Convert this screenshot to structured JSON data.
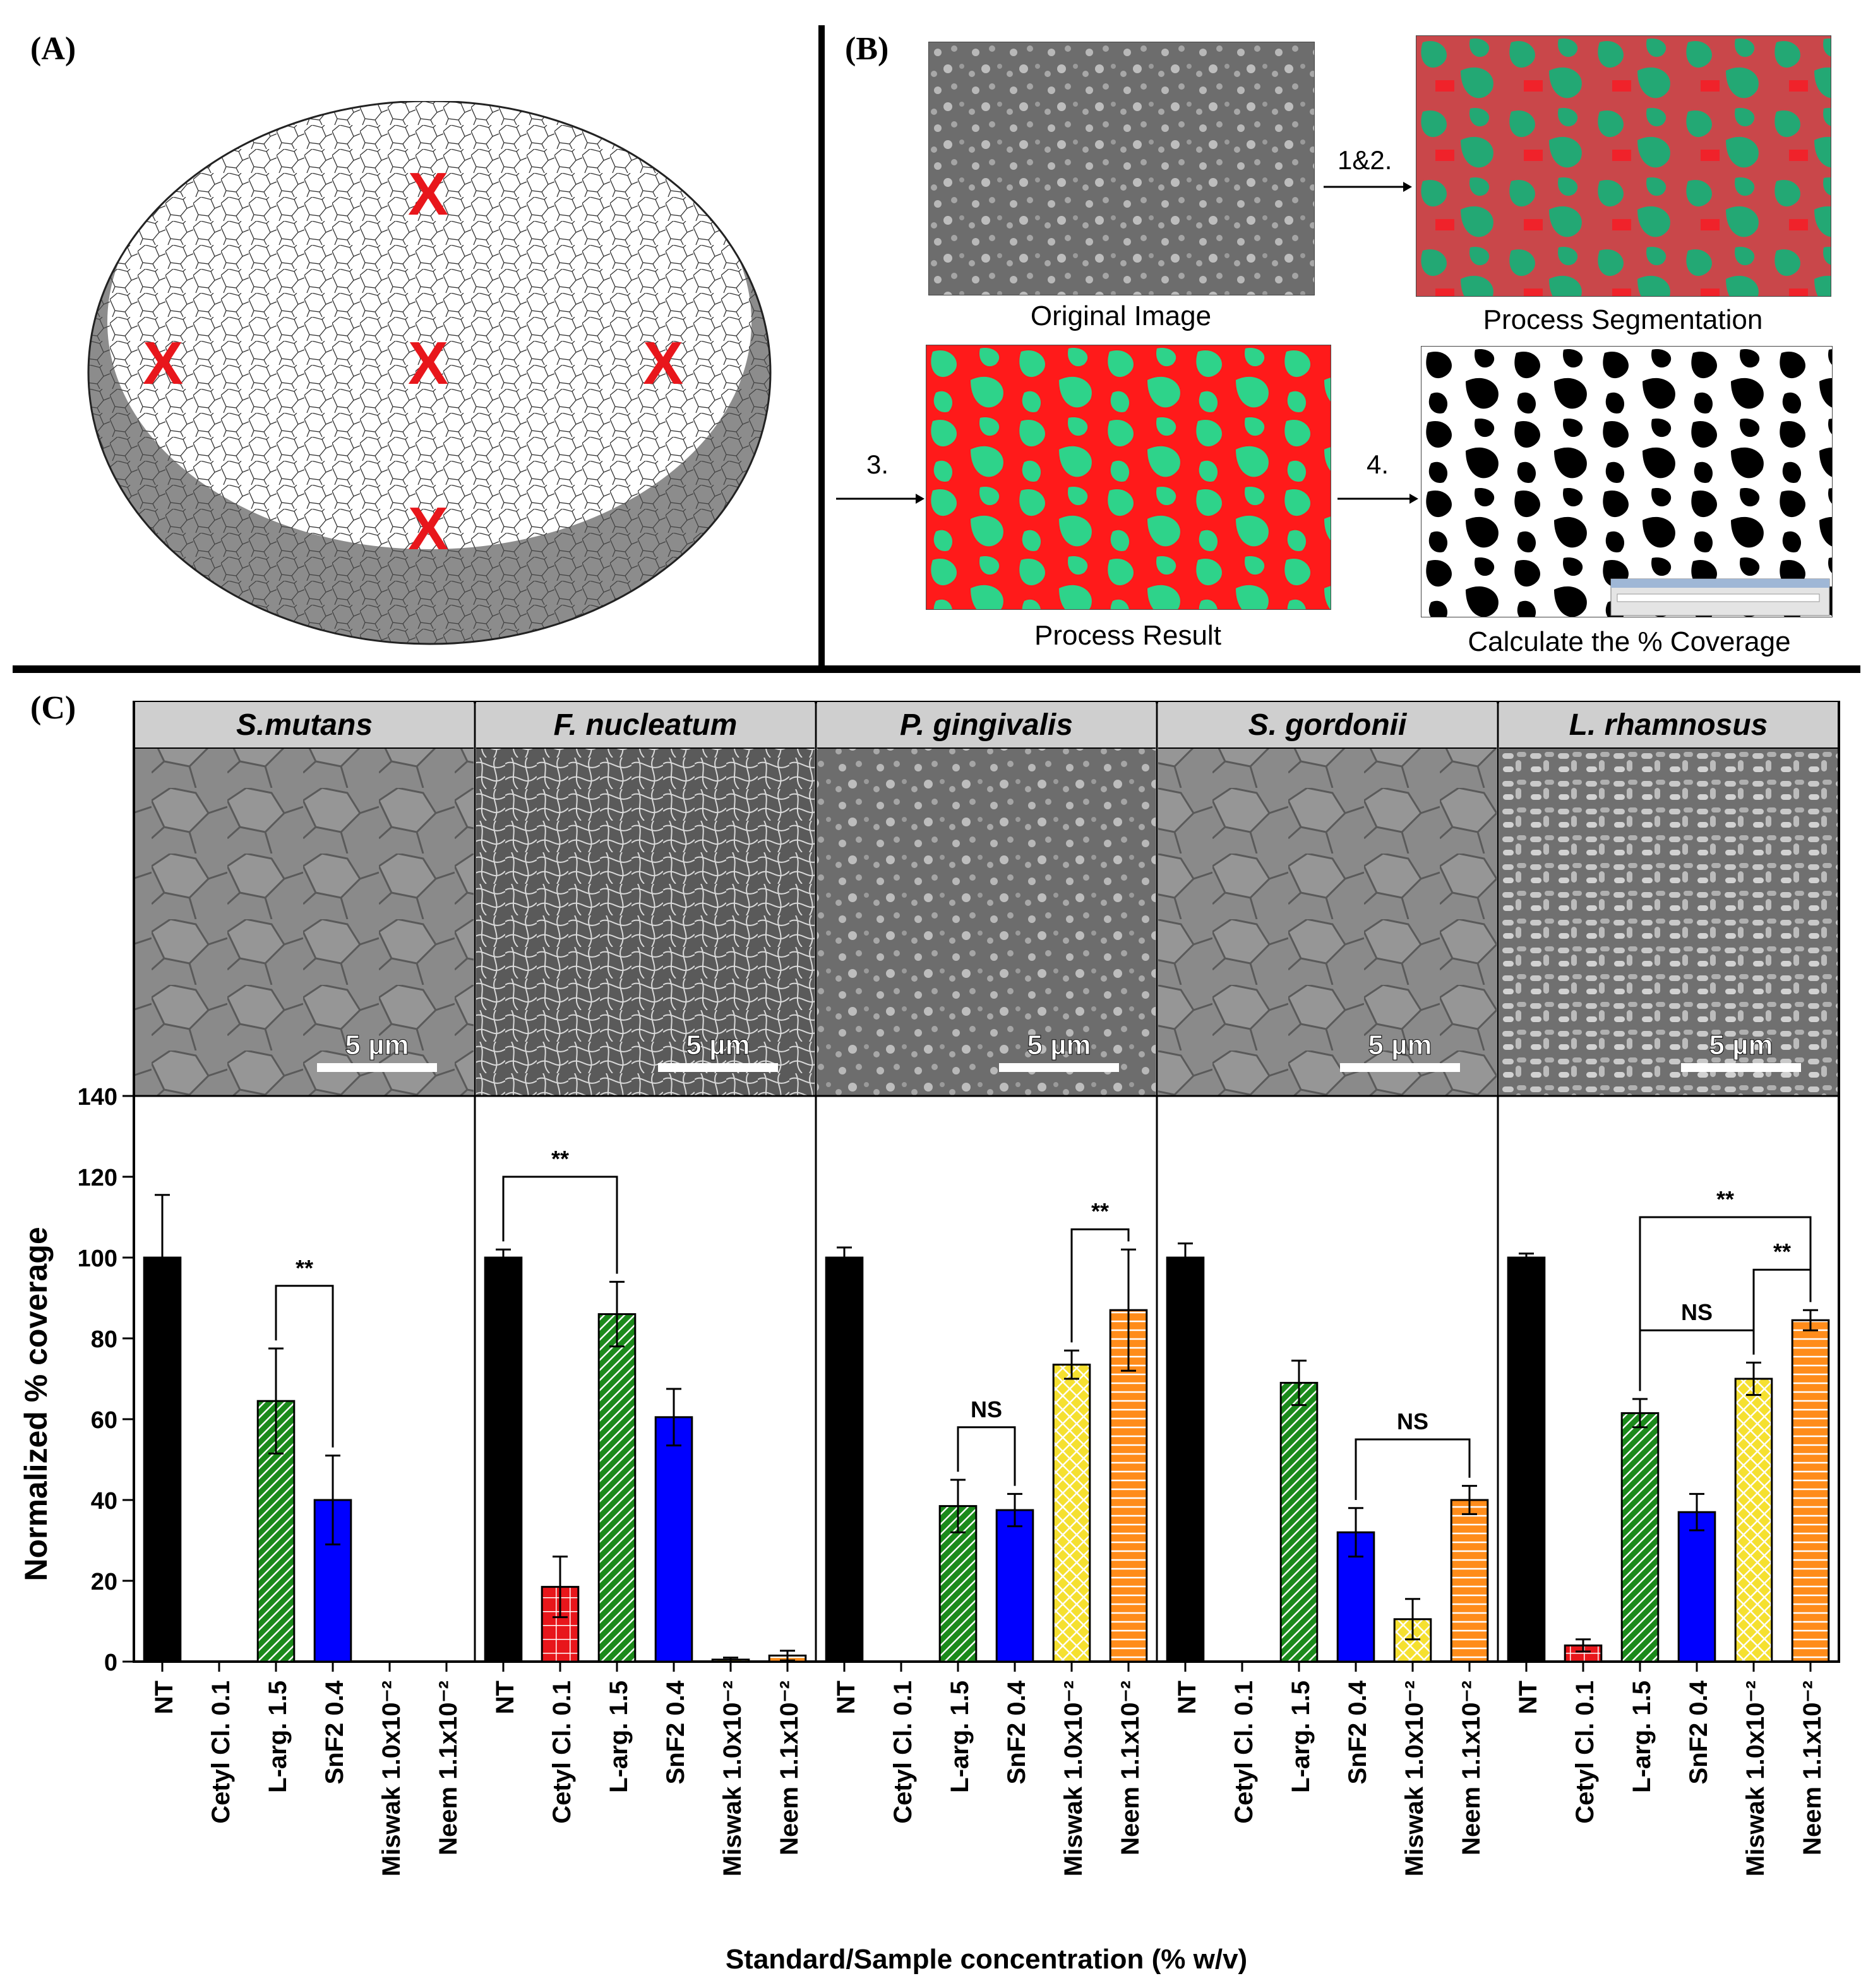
{
  "panels": {
    "a_label": "(A)",
    "b_label": "(B)",
    "c_label": "(C)"
  },
  "panel_b": {
    "steps": [
      "1&2.",
      "3.",
      "4."
    ],
    "captions": [
      "Original Image",
      "Process Segmentation",
      "Process Result",
      "Calculate the % Coverage"
    ]
  },
  "panel_c": {
    "species": [
      "S.mutans",
      "F. nucleatum",
      "P. gingivalis",
      "S. gordonii",
      "L. rhamnosus"
    ],
    "scale_bar": "5 µm"
  },
  "colors": {
    "NT": "#000000",
    "Cetyl": "#e8161b",
    "Larg": "#1b8a1b",
    "SnF2": "#0000ff",
    "Miswak": "#f5e030",
    "Neem": "#ff8c1a",
    "segment_green": "#2ed38a",
    "segment_red": "#ff1a1a"
  },
  "chart_data": [
    {
      "type": "bar",
      "species": "S.mutans",
      "categories": [
        "NT",
        "Cetyl Cl. 0.1",
        "L-arg. 1.5",
        "SnF2 0.4",
        "Miswak 1.0x10⁻²",
        "Neem 1.1x10⁻²"
      ],
      "values": [
        100,
        0,
        64.5,
        40,
        0,
        0
      ],
      "errors": [
        15.5,
        0,
        13,
        11,
        0,
        0
      ],
      "annotations": [
        {
          "from": 2,
          "to": 3,
          "text": "**"
        }
      ],
      "ylabel": "Normalized % coverage",
      "xlabel": "Standard/Sample concentration (% w/v)",
      "ylim": [
        0,
        140
      ],
      "yticks": [
        0,
        20,
        40,
        60,
        80,
        100,
        120,
        140
      ]
    },
    {
      "type": "bar",
      "species": "F. nucleatum",
      "categories": [
        "NT",
        "Cetyl Cl. 0.1",
        "L-arg. 1.5",
        "SnF2 0.4",
        "Miswak 1.0x10⁻²",
        "Neem 1.1x10⁻²"
      ],
      "values": [
        100,
        18.5,
        86,
        60.5,
        0.5,
        1.5
      ],
      "errors": [
        2,
        7.5,
        8,
        7,
        0.5,
        1.2
      ],
      "annotations": [
        {
          "from": 0,
          "to": 2,
          "text": "**"
        }
      ]
    },
    {
      "type": "bar",
      "species": "P. gingivalis",
      "categories": [
        "NT",
        "Cetyl Cl. 0.1",
        "L-arg. 1.5",
        "SnF2 0.4",
        "Miswak 1.0x10⁻²",
        "Neem 1.1x10⁻²"
      ],
      "values": [
        100,
        0,
        38.5,
        37.5,
        73.5,
        87
      ],
      "errors": [
        2.5,
        0,
        6.5,
        4,
        3.5,
        15
      ],
      "annotations": [
        {
          "from": 2,
          "to": 3,
          "text": "NS"
        },
        {
          "from": 4,
          "to": 5,
          "text": "**"
        }
      ]
    },
    {
      "type": "bar",
      "species": "S. gordonii",
      "categories": [
        "NT",
        "Cetyl Cl. 0.1",
        "L-arg. 1.5",
        "SnF2 0.4",
        "Miswak 1.0x10⁻²",
        "Neem 1.1x10⁻²"
      ],
      "values": [
        100,
        0,
        69,
        32,
        10.5,
        40
      ],
      "errors": [
        3.5,
        0,
        5.5,
        6,
        5,
        3.5
      ],
      "annotations": [
        {
          "from": 3,
          "to": 5,
          "text": "NS"
        }
      ]
    },
    {
      "type": "bar",
      "species": "L. rhamnosus",
      "categories": [
        "NT",
        "Cetyl Cl. 0.1",
        "L-arg. 1.5",
        "SnF2 0.4",
        "Miswak 1.0x10⁻²",
        "Neem 1.1x10⁻²"
      ],
      "values": [
        100,
        4,
        61.5,
        37,
        70,
        84.5
      ],
      "errors": [
        1,
        1.5,
        3.5,
        4.5,
        4,
        2.5
      ],
      "annotations": [
        {
          "from": 2,
          "to": 4,
          "text": "NS"
        },
        {
          "from": 4,
          "to": 5,
          "text": "**"
        },
        {
          "from": 2,
          "to": 5,
          "text": "**"
        }
      ]
    }
  ]
}
